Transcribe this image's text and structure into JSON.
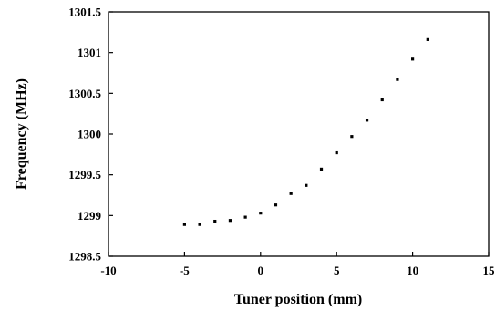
{
  "chart_data": {
    "type": "scatter",
    "title": "",
    "xlabel": "Tuner position (mm)",
    "ylabel": "Frequency (MHz)",
    "xlim": [
      -10,
      15
    ],
    "ylim": [
      1298.5,
      1301.5
    ],
    "xticks": [
      -10,
      -5,
      0,
      5,
      10,
      15
    ],
    "xtick_labels": [
      "-10",
      "-5",
      "0",
      "5",
      "10",
      "15"
    ],
    "yticks": [
      1298.5,
      1299,
      1299.5,
      1300,
      1300.5,
      1301,
      1301.5
    ],
    "ytick_labels": [
      "1298.5",
      "1299",
      "1299.5",
      "1300",
      "1300.5",
      "1301",
      "1301.5"
    ],
    "grid": false,
    "legend": "none",
    "marker_color": "#000000",
    "series": [
      {
        "x": [
          -5,
          -4,
          -3,
          -2,
          -1,
          0,
          1,
          2,
          3,
          4,
          5,
          6,
          7,
          8,
          9,
          10,
          11
        ],
        "y": [
          1298.89,
          1298.89,
          1298.93,
          1298.94,
          1298.98,
          1299.03,
          1299.13,
          1299.27,
          1299.37,
          1299.57,
          1299.77,
          1299.97,
          1300.17,
          1300.42,
          1300.67,
          1300.92,
          1301.16
        ]
      }
    ]
  }
}
